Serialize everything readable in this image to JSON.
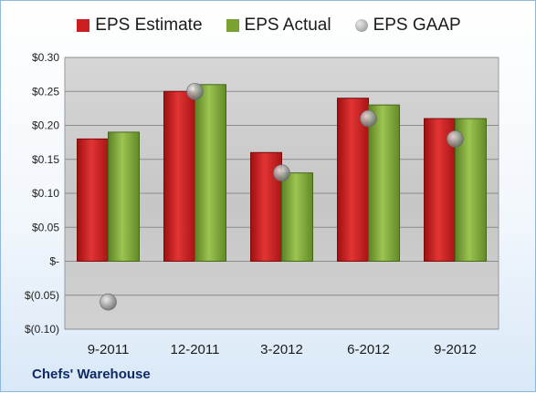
{
  "chart_data": {
    "type": "bar",
    "categories": [
      "9-2011",
      "12-2011",
      "3-2012",
      "6-2012",
      "9-2012"
    ],
    "series": [
      {
        "name": "EPS Estimate",
        "kind": "bar",
        "color": "#cc1f1f",
        "values": [
          0.18,
          0.25,
          0.16,
          0.24,
          0.21
        ]
      },
      {
        "name": "EPS Actual",
        "kind": "bar",
        "color": "#7aa233",
        "values": [
          0.19,
          0.26,
          0.13,
          0.23,
          0.21
        ]
      },
      {
        "name": "EPS GAAP",
        "kind": "scatter",
        "color": "#9a9a9a",
        "values": [
          -0.06,
          0.25,
          0.13,
          0.21,
          0.18
        ]
      }
    ],
    "ylim": [
      -0.1,
      0.3
    ],
    "yticks": [
      {
        "value": 0.3,
        "label": "$0.30"
      },
      {
        "value": 0.25,
        "label": "$0.25"
      },
      {
        "value": 0.2,
        "label": "$0.20"
      },
      {
        "value": 0.15,
        "label": "$0.15"
      },
      {
        "value": 0.1,
        "label": "$0.10"
      },
      {
        "value": 0.05,
        "label": "$0.05"
      },
      {
        "value": 0.0,
        "label": "$-"
      },
      {
        "value": -0.05,
        "label": "$(0.05)"
      },
      {
        "value": -0.1,
        "label": "$(0.10)"
      }
    ],
    "grid": true,
    "legend": "top-center"
  },
  "footer": {
    "company": "Chefs' Warehouse"
  }
}
